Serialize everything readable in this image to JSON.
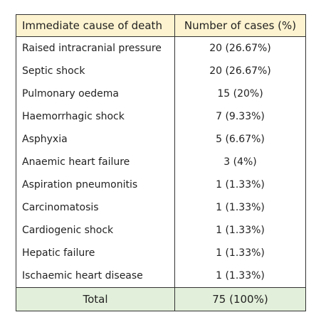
{
  "table": {
    "header": [
      "Immediate cause of death",
      "Number of cases (%)"
    ],
    "rows": [
      [
        "Raised intracranial pressure",
        "20 (26.67%)"
      ],
      [
        "Septic shock",
        "20 (26.67%)"
      ],
      [
        "Pulmonary oedema",
        "15 (20%)"
      ],
      [
        "Haemorrhagic shock",
        "7 (9.33%)"
      ],
      [
        "Asphyxia",
        "5 (6.67%)"
      ],
      [
        "Anaemic heart failure",
        "3 (4%)"
      ],
      [
        "Aspiration pneumonitis",
        "1 (1.33%)"
      ],
      [
        "Carcinomatosis",
        "1 (1.33%)"
      ],
      [
        "Cardiogenic shock",
        "1 (1.33%)"
      ],
      [
        "Hepatic failure",
        "1 (1.33%)"
      ],
      [
        "Ischaemic heart disease",
        "1 (1.33%)"
      ]
    ],
    "total": [
      "Total",
      "75 (100%)"
    ]
  }
}
